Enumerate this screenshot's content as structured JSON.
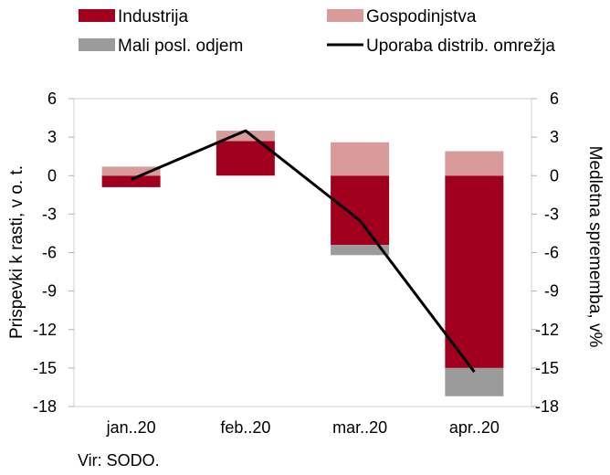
{
  "chart_data": {
    "type": "bar",
    "stacked": true,
    "categories": [
      "jan..20",
      "feb..20",
      "mar..20",
      "apr..20"
    ],
    "series": [
      {
        "name": "Industrija",
        "kind": "bar",
        "axis": "left",
        "color": "#a0001e",
        "values": [
          -0.9,
          2.7,
          -5.4,
          -15.0
        ]
      },
      {
        "name": "Gospodinjstva",
        "kind": "bar",
        "axis": "left",
        "color": "#d99a9a",
        "values": [
          0.7,
          0.8,
          2.6,
          1.9
        ]
      },
      {
        "name": "Mali posl. odjem",
        "kind": "bar",
        "axis": "left",
        "color": "#9b9b9b",
        "values": [
          0.0,
          0.0,
          -0.8,
          -2.2
        ]
      },
      {
        "name": "Uporaba distrib. omrežja",
        "kind": "line",
        "axis": "right",
        "color": "#000000",
        "values": [
          -0.3,
          3.5,
          -3.5,
          -15.3
        ]
      }
    ],
    "ylabel": "Prispevki k rasti, v o. t.",
    "y2label": "Medletna sprememba, v%",
    "ylim": [
      -18,
      6
    ],
    "y2lim": [
      -18,
      6
    ],
    "yticks": [
      6,
      3,
      0,
      -3,
      -6,
      -9,
      -12,
      -15,
      -18
    ],
    "y2ticks": [
      6,
      3,
      0,
      -3,
      -6,
      -9,
      -12,
      -15,
      -18
    ],
    "grid": false,
    "legend_position": "top"
  },
  "source": "Vir: SODO."
}
